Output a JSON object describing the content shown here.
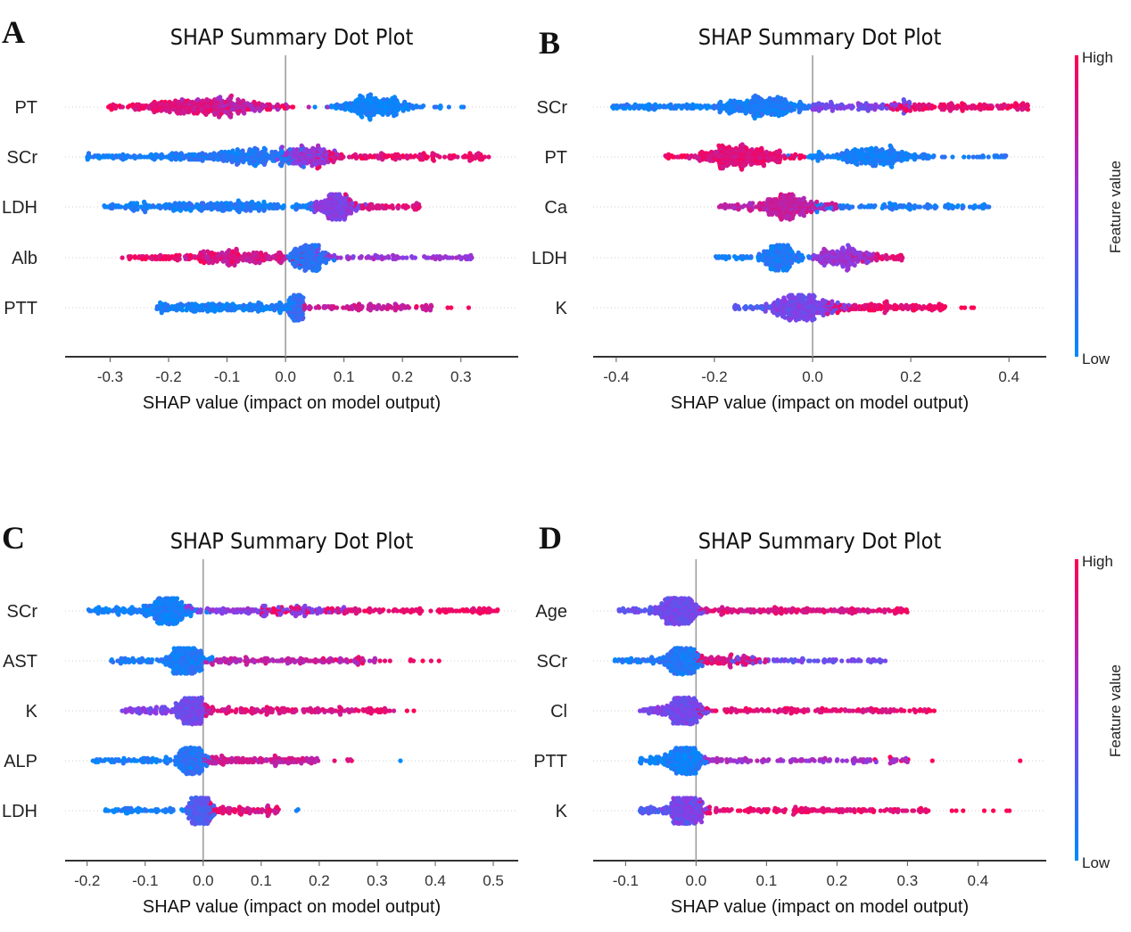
{
  "colors": {
    "low": "#008afb",
    "mid": "#8a3ce6",
    "high": "#ff0052"
  },
  "colorbar": {
    "high_label": "High",
    "low_label": "Low",
    "title": "Feature value"
  },
  "chart_data": [
    {
      "panel": "A",
      "type": "scatter",
      "title": "SHAP Summary Dot Plot",
      "xlabel": "SHAP value (impact on model output)",
      "xticks": [
        "-0.3",
        "-0.2",
        "-0.1",
        "0.0",
        "0.1",
        "0.2",
        "0.3"
      ],
      "tick_values": [
        -0.3,
        -0.2,
        -0.1,
        0,
        0.1,
        0.2,
        0.3
      ],
      "xlim": [
        -0.377,
        0.398
      ],
      "features": [
        {
          "name": "PT",
          "range": [
            -0.31,
            0.31
          ],
          "groups": [
            {
              "mean": -0.17,
              "sd": 0.05,
              "n": 220,
              "feature_value": 0.85
            },
            {
              "mean": -0.08,
              "sd": 0.04,
              "n": 160,
              "feature_value": 0.7
            },
            {
              "from": -0.31,
              "to": 0.03,
              "n": 60,
              "feature_value": 0.95
            },
            {
              "mean": 0.15,
              "sd": 0.035,
              "n": 260,
              "feature_value": 0.05
            },
            {
              "from": 0.09,
              "to": 0.31,
              "n": 30,
              "feature_value": 0.1
            }
          ]
        },
        {
          "name": "SCr",
          "range": [
            -0.34,
            0.36
          ],
          "groups": [
            {
              "from": -0.34,
              "to": 0.0,
              "n": 200,
              "feature_value": 0.08
            },
            {
              "mean": -0.06,
              "sd": 0.05,
              "n": 200,
              "feature_value": 0.15
            },
            {
              "mean": 0.04,
              "sd": 0.025,
              "n": 180,
              "feature_value": 0.55
            },
            {
              "from": 0.05,
              "to": 0.36,
              "n": 150,
              "feature_value": 0.9
            }
          ]
        },
        {
          "name": "LDH",
          "range": [
            -0.31,
            0.23
          ],
          "groups": [
            {
              "from": -0.31,
              "to": 0.05,
              "n": 220,
              "feature_value": 0.08
            },
            {
              "mean": -0.1,
              "sd": 0.04,
              "n": 80,
              "feature_value": 0.12
            },
            {
              "mean": 0.085,
              "sd": 0.018,
              "n": 220,
              "feature_value": 0.5
            },
            {
              "from": 0.1,
              "to": 0.23,
              "n": 70,
              "feature_value": 0.85
            }
          ]
        },
        {
          "name": "Alb",
          "range": [
            -0.28,
            0.32
          ],
          "groups": [
            {
              "from": -0.28,
              "to": 0.0,
              "n": 150,
              "feature_value": 0.9
            },
            {
              "mean": -0.08,
              "sd": 0.04,
              "n": 150,
              "feature_value": 0.8
            },
            {
              "mean": 0.04,
              "sd": 0.015,
              "n": 220,
              "feature_value": 0.15
            },
            {
              "from": 0.05,
              "to": 0.32,
              "n": 90,
              "feature_value": 0.55
            }
          ]
        },
        {
          "name": "PTT",
          "range": [
            -0.22,
            0.32
          ],
          "groups": [
            {
              "from": -0.22,
              "to": 0.03,
              "n": 250,
              "feature_value": 0.08
            },
            {
              "mean": 0.02,
              "sd": 0.006,
              "n": 120,
              "feature_value": 0.2
            },
            {
              "from": 0.03,
              "to": 0.25,
              "n": 100,
              "feature_value": 0.75
            },
            {
              "from": 0.22,
              "to": 0.32,
              "n": 5,
              "feature_value": 1.0
            }
          ]
        }
      ]
    },
    {
      "panel": "B",
      "type": "scatter",
      "title": "SHAP Summary Dot Plot",
      "xlabel": "SHAP value (impact on model output)",
      "xticks": [
        "-0.4",
        "-0.2",
        "0.0",
        "0.2",
        "0.4"
      ],
      "tick_values": [
        -0.4,
        -0.2,
        0,
        0.2,
        0.4
      ],
      "xlim": [
        -0.447,
        0.476
      ],
      "features": [
        {
          "name": "SCr",
          "range": [
            -0.41,
            0.44
          ],
          "groups": [
            {
              "from": -0.41,
              "to": 0.0,
              "n": 200,
              "feature_value": 0.08
            },
            {
              "mean": -0.1,
              "sd": 0.04,
              "n": 220,
              "feature_value": 0.1
            },
            {
              "from": 0.0,
              "to": 0.2,
              "n": 120,
              "feature_value": 0.45
            },
            {
              "from": 0.15,
              "to": 0.44,
              "n": 160,
              "feature_value": 0.9
            }
          ]
        },
        {
          "name": "PT",
          "range": [
            -0.3,
            0.4
          ],
          "groups": [
            {
              "mean": -0.15,
              "sd": 0.045,
              "n": 320,
              "feature_value": 0.85
            },
            {
              "from": -0.3,
              "to": -0.02,
              "n": 60,
              "feature_value": 0.95
            },
            {
              "mean": 0.12,
              "sd": 0.06,
              "n": 280,
              "feature_value": 0.07
            },
            {
              "from": 0.0,
              "to": 0.4,
              "n": 50,
              "feature_value": 0.1
            }
          ]
        },
        {
          "name": "Ca",
          "range": [
            -0.19,
            0.36
          ],
          "groups": [
            {
              "mean": -0.05,
              "sd": 0.03,
              "n": 220,
              "feature_value": 0.75
            },
            {
              "from": -0.19,
              "to": 0.05,
              "n": 100,
              "feature_value": 0.7
            },
            {
              "from": 0.0,
              "to": 0.36,
              "n": 120,
              "feature_value": 0.1
            }
          ]
        },
        {
          "name": "LDH",
          "range": [
            -0.2,
            0.19
          ],
          "groups": [
            {
              "mean": -0.065,
              "sd": 0.018,
              "n": 200,
              "feature_value": 0.1
            },
            {
              "from": -0.2,
              "to": 0.0,
              "n": 60,
              "feature_value": 0.08
            },
            {
              "mean": 0.06,
              "sd": 0.03,
              "n": 200,
              "feature_value": 0.55
            },
            {
              "from": 0.08,
              "to": 0.19,
              "n": 50,
              "feature_value": 0.85
            }
          ]
        },
        {
          "name": "K",
          "range": [
            -0.16,
            0.37
          ],
          "groups": [
            {
              "mean": -0.02,
              "sd": 0.035,
              "n": 300,
              "feature_value": 0.45
            },
            {
              "from": -0.16,
              "to": 0.0,
              "n": 60,
              "feature_value": 0.3
            },
            {
              "from": 0.02,
              "to": 0.27,
              "n": 160,
              "feature_value": 0.9
            },
            {
              "from": 0.3,
              "to": 0.37,
              "n": 4,
              "feature_value": 1.0
            }
          ]
        }
      ]
    },
    {
      "panel": "C",
      "type": "scatter",
      "title": "SHAP Summary Dot Plot",
      "xlabel": "SHAP value (impact on model output)",
      "xticks": [
        "-0.2",
        "-0.1",
        "0.0",
        "0.1",
        "0.2",
        "0.3",
        "0.4",
        "0.5"
      ],
      "tick_values": [
        -0.2,
        -0.1,
        0,
        0.1,
        0.2,
        0.3,
        0.4,
        0.5
      ],
      "xlim": [
        -0.238,
        0.543
      ],
      "features": [
        {
          "name": "SCr",
          "range": [
            -0.2,
            0.51
          ],
          "groups": [
            {
              "mean": -0.06,
              "sd": 0.02,
              "n": 250,
              "feature_value": 0.08
            },
            {
              "from": -0.2,
              "to": -0.03,
              "n": 120,
              "feature_value": 0.07
            },
            {
              "from": -0.03,
              "to": 0.25,
              "n": 150,
              "feature_value": 0.5
            },
            {
              "from": 0.1,
              "to": 0.51,
              "n": 160,
              "feature_value": 0.92
            }
          ]
        },
        {
          "name": "AST",
          "range": [
            -0.16,
            0.41
          ],
          "groups": [
            {
              "mean": -0.03,
              "sd": 0.018,
              "n": 250,
              "feature_value": 0.1
            },
            {
              "from": -0.16,
              "to": 0.0,
              "n": 80,
              "feature_value": 0.08
            },
            {
              "from": 0.0,
              "to": 0.3,
              "n": 140,
              "feature_value": 0.7
            },
            {
              "from": 0.2,
              "to": 0.41,
              "n": 20,
              "feature_value": 0.95
            }
          ]
        },
        {
          "name": "K",
          "range": [
            -0.14,
            0.37
          ],
          "groups": [
            {
              "mean": -0.02,
              "sd": 0.012,
              "n": 250,
              "feature_value": 0.4
            },
            {
              "from": -0.14,
              "to": 0.0,
              "n": 100,
              "feature_value": 0.45
            },
            {
              "from": 0.0,
              "to": 0.33,
              "n": 180,
              "feature_value": 0.85
            },
            {
              "from": 0.3,
              "to": 0.37,
              "n": 3,
              "feature_value": 1.0
            }
          ]
        },
        {
          "name": "ALP",
          "range": [
            -0.19,
            0.34
          ],
          "groups": [
            {
              "mean": -0.02,
              "sd": 0.012,
              "n": 230,
              "feature_value": 0.15
            },
            {
              "from": -0.19,
              "to": 0.0,
              "n": 90,
              "feature_value": 0.08
            },
            {
              "from": 0.0,
              "to": 0.2,
              "n": 160,
              "feature_value": 0.75
            },
            {
              "from": 0.22,
              "to": 0.27,
              "n": 5,
              "feature_value": 0.9
            },
            {
              "from": 0.34,
              "to": 0.34,
              "n": 1,
              "feature_value": 0.0
            }
          ]
        },
        {
          "name": "LDH",
          "range": [
            -0.17,
            0.17
          ],
          "groups": [
            {
              "mean": -0.005,
              "sd": 0.01,
              "n": 260,
              "feature_value": 0.3
            },
            {
              "from": -0.17,
              "to": 0.0,
              "n": 70,
              "feature_value": 0.08
            },
            {
              "from": 0.0,
              "to": 0.13,
              "n": 100,
              "feature_value": 0.85
            },
            {
              "from": 0.15,
              "to": 0.17,
              "n": 2,
              "feature_value": 0.0
            }
          ]
        }
      ]
    },
    {
      "panel": "D",
      "type": "scatter",
      "title": "SHAP Summary Dot Plot",
      "xlabel": "SHAP value (impact on model output)",
      "xticks": [
        "-0.1",
        "0.0",
        "0.1",
        "0.2",
        "0.3",
        "0.4"
      ],
      "tick_values": [
        -0.1,
        0,
        0.1,
        0.2,
        0.3,
        0.4
      ],
      "xlim": [
        -0.146,
        0.497
      ],
      "features": [
        {
          "name": "Age",
          "range": [
            -0.11,
            0.32
          ],
          "groups": [
            {
              "mean": -0.025,
              "sd": 0.015,
              "n": 280,
              "feature_value": 0.4
            },
            {
              "from": -0.11,
              "to": 0.0,
              "n": 80,
              "feature_value": 0.35
            },
            {
              "from": 0.0,
              "to": 0.3,
              "n": 180,
              "feature_value": 0.85
            },
            {
              "from": 0.28,
              "to": 0.32,
              "n": 3,
              "feature_value": 1.0
            }
          ]
        },
        {
          "name": "SCr",
          "range": [
            -0.12,
            0.27
          ],
          "groups": [
            {
              "mean": -0.02,
              "sd": 0.012,
              "n": 260,
              "feature_value": 0.12
            },
            {
              "from": -0.12,
              "to": 0.0,
              "n": 80,
              "feature_value": 0.1
            },
            {
              "from": 0.0,
              "to": 0.1,
              "n": 100,
              "feature_value": 0.85
            },
            {
              "from": 0.05,
              "to": 0.27,
              "n": 80,
              "feature_value": 0.4
            }
          ]
        },
        {
          "name": "Cl",
          "range": [
            -0.08,
            0.34
          ],
          "groups": [
            {
              "mean": -0.015,
              "sd": 0.012,
              "n": 260,
              "feature_value": 0.4
            },
            {
              "from": -0.08,
              "to": 0.0,
              "n": 80,
              "feature_value": 0.45
            },
            {
              "from": 0.0,
              "to": 0.34,
              "n": 150,
              "feature_value": 0.88
            }
          ]
        },
        {
          "name": "PTT",
          "range": [
            -0.08,
            0.46
          ],
          "groups": [
            {
              "mean": -0.015,
              "sd": 0.012,
              "n": 270,
              "feature_value": 0.08
            },
            {
              "from": -0.08,
              "to": 0.0,
              "n": 90,
              "feature_value": 0.07
            },
            {
              "from": 0.0,
              "to": 0.3,
              "n": 120,
              "feature_value": 0.6
            },
            {
              "from": 0.25,
              "to": 0.34,
              "n": 5,
              "feature_value": 1.0
            },
            {
              "from": 0.46,
              "to": 0.46,
              "n": 1,
              "feature_value": 1.0
            }
          ]
        },
        {
          "name": "K",
          "range": [
            -0.08,
            0.47
          ],
          "groups": [
            {
              "mean": -0.015,
              "sd": 0.012,
              "n": 260,
              "feature_value": 0.45
            },
            {
              "from": -0.08,
              "to": 0.0,
              "n": 80,
              "feature_value": 0.3
            },
            {
              "from": 0.0,
              "to": 0.34,
              "n": 160,
              "feature_value": 0.9
            },
            {
              "from": 0.36,
              "to": 0.47,
              "n": 7,
              "feature_value": 1.0
            }
          ]
        }
      ]
    }
  ]
}
